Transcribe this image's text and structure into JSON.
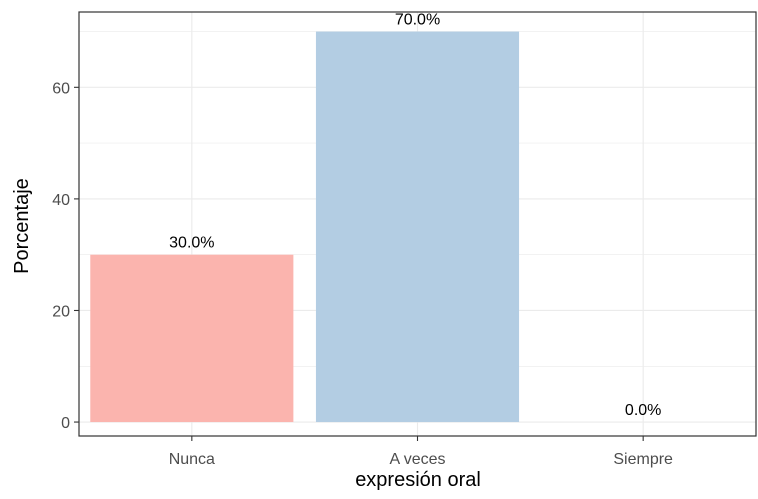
{
  "chart_data": {
    "type": "bar",
    "categories": [
      "Nunca",
      "A veces",
      "Siempre"
    ],
    "values": [
      30.0,
      70.0,
      0.0
    ],
    "data_labels": [
      "30.0%",
      "70.0%",
      "0.0%"
    ],
    "bar_colors": [
      "#FBB4AE",
      "#B3CDE3",
      "#CCEBC5"
    ],
    "xlabel": "expresión oral",
    "ylabel": "Porcentaje",
    "ylim": [
      -2.5,
      73.5
    ],
    "yticks": [
      0,
      20,
      40,
      60
    ],
    "ytick_labels": [
      "0",
      "20",
      "40",
      "60"
    ],
    "grid": true,
    "legend": "none",
    "colors": {
      "panel_border": "#333333",
      "grid": "#EBEBEB",
      "axis_text": "#4D4D4D",
      "title_text": "#000000"
    }
  }
}
